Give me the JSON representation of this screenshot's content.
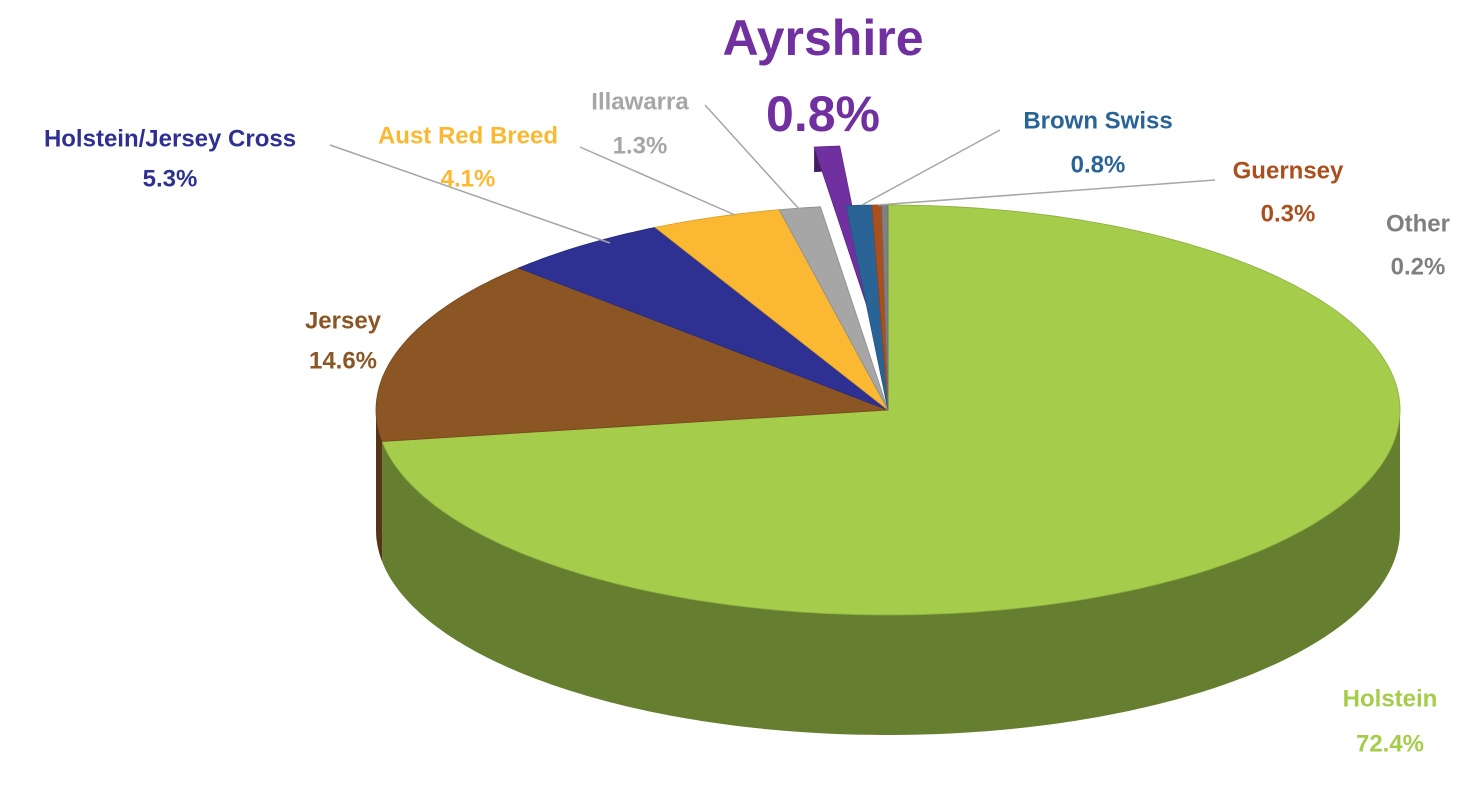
{
  "chart_data": {
    "type": "pie",
    "categories": [
      "Holstein",
      "Jersey",
      "Holstein/Jersey Cross",
      "Aust Red Breed",
      "Illawarra",
      "Ayrshire",
      "Brown Swiss",
      "Guernsey",
      "Other"
    ],
    "values": [
      72.4,
      14.6,
      5.3,
      4.1,
      1.3,
      0.8,
      0.8,
      0.3,
      0.2
    ],
    "value_labels": [
      "72.4%",
      "14.6%",
      "5.3%",
      "4.1%",
      "1.3%",
      "0.8%",
      "0.8%",
      "0.3%",
      "0.2%"
    ],
    "colors": [
      "#a5cc4b",
      "#8b5524",
      "#2e3192",
      "#fbb933",
      "#a6a6a6",
      "#7030a0",
      "#2a6496",
      "#a9501e",
      "#808080"
    ],
    "label_colors": [
      "#a5cc4b",
      "#8b5524",
      "#2e3192",
      "#fbb933",
      "#a6a6a6",
      "#7030a0",
      "#2a6496",
      "#a9501e",
      "#7f7f7f"
    ]
  }
}
